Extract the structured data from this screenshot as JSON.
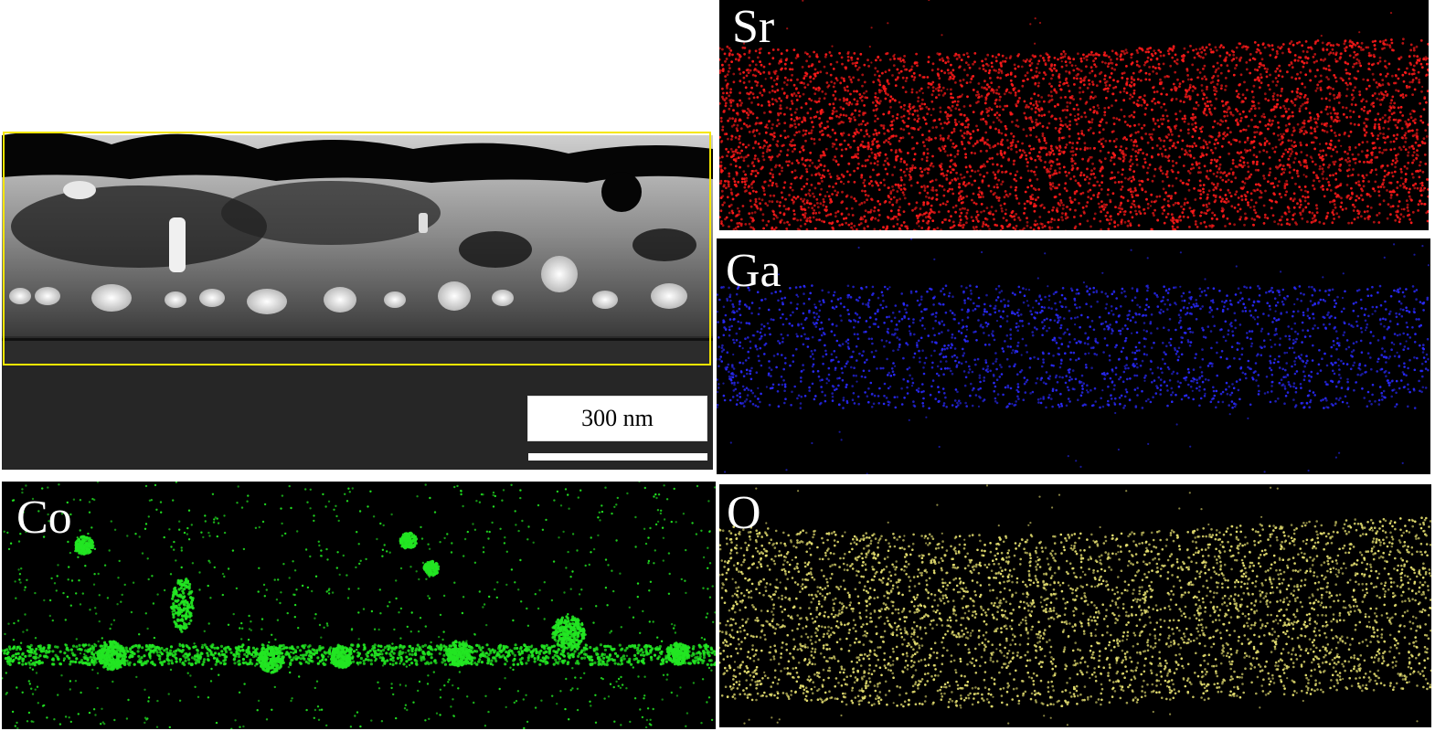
{
  "tem_panel": {
    "scale_bar_label": "300 nm"
  },
  "maps": {
    "sr": {
      "label": "Sr",
      "color": "#ff1a1a"
    },
    "ga": {
      "label": "Ga",
      "color": "#2a2aff"
    },
    "co": {
      "label": "Co",
      "color": "#22e622"
    },
    "o": {
      "label": "O",
      "color": "#e6e070"
    }
  }
}
